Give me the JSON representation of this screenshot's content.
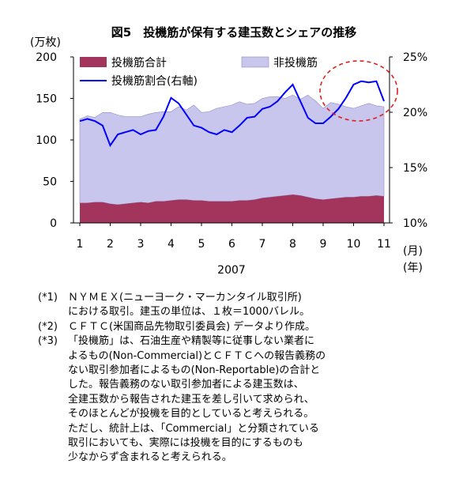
{
  "chart_data": {
    "type": "area",
    "title": "図5　投機筋が保有する建玉数とシェアの推移",
    "y_left_unit": "(万枚)",
    "y_left_ticks": [
      "0",
      "50",
      "100",
      "150",
      "200"
    ],
    "y_left_range": [
      0,
      200
    ],
    "y_right_ticks": [
      "10%",
      "15%",
      "20%",
      "25%"
    ],
    "y_right_range": [
      10,
      25
    ],
    "x_ticks": [
      "1",
      "2",
      "3",
      "4",
      "5",
      "6",
      "7",
      "8",
      "9",
      "10",
      "11"
    ],
    "x_unit_month": "(月)",
    "x_unit_year": "(年)",
    "year_label": "2007",
    "legend_placement": "top",
    "x": [
      1.0,
      1.25,
      1.5,
      1.75,
      2.0,
      2.25,
      2.5,
      2.75,
      3.0,
      3.25,
      3.5,
      3.75,
      4.0,
      4.25,
      4.5,
      4.75,
      5.0,
      5.25,
      5.5,
      5.75,
      6.0,
      6.25,
      6.5,
      6.75,
      7.0,
      7.25,
      7.5,
      7.75,
      8.0,
      8.25,
      8.5,
      8.75,
      9.0,
      9.25,
      9.5,
      9.75,
      10.0,
      10.25,
      10.5,
      10.75,
      11.0
    ],
    "series": [
      {
        "name": "投機筋合計",
        "type": "area",
        "axis": "left",
        "color": "#a3345c",
        "values": [
          24,
          24,
          25,
          25,
          23,
          22,
          23,
          24,
          25,
          24,
          26,
          26,
          27,
          28,
          28,
          27,
          27,
          26,
          26,
          26,
          26,
          27,
          27,
          28,
          30,
          31,
          32,
          33,
          34,
          33,
          31,
          29,
          28,
          29,
          30,
          31,
          31,
          32,
          32,
          33,
          32
        ]
      },
      {
        "name": "非投機筋",
        "type": "area",
        "axis": "left",
        "color": "#c9c6ee",
        "note": "upper edge = total open interest (stacked on 投機筋合計)",
        "values": [
          101,
          105,
          102,
          108,
          110,
          108,
          105,
          104,
          103,
          107,
          107,
          108,
          107,
          112,
          108,
          115,
          106,
          108,
          112,
          114,
          116,
          119,
          116,
          116,
          120,
          121,
          120,
          117,
          120,
          116,
          123,
          118,
          110,
          116,
          113,
          109,
          107,
          109,
          112,
          108,
          108
        ]
      },
      {
        "name": "投機筋割合(右軸)",
        "type": "line",
        "axis": "right",
        "color": "#0000ff",
        "values": [
          19.2,
          19.4,
          19.2,
          18.8,
          17.0,
          18.0,
          18.2,
          18.4,
          18.0,
          18.3,
          18.4,
          19.6,
          21.3,
          20.8,
          19.8,
          18.8,
          18.6,
          18.2,
          18.0,
          18.4,
          18.2,
          18.8,
          19.5,
          19.6,
          20.3,
          20.5,
          21.0,
          21.8,
          22.5,
          21.0,
          19.5,
          19.0,
          19.0,
          19.6,
          20.3,
          21.3,
          22.5,
          22.8,
          22.7,
          22.8,
          21.0
        ]
      }
    ],
    "annotation": "red dashed ellipse around Oct–Nov ratio peak"
  },
  "notes": [
    {
      "marker": "(*1)",
      "lines": [
        "ＮＹＭＥＸ(ニューヨーク・マーカンタイル取引所)",
        "における取引。建玉の単位は、１枚＝1000バレル。"
      ]
    },
    {
      "marker": "(*2)",
      "lines": [
        "ＣＦＴＣ(米国商品先物取引委員会) データより作成。"
      ]
    },
    {
      "marker": "(*3)",
      "lines": [
        "「投機筋」は、石油生産や精製等に従事しない業者に",
        "よるもの(Non-Commercial)とＣＦＴＣへの報告義務の",
        "ない取引参加者によるもの(Non-Reportable)の合計と",
        "した。報告義務のない取引参加者による建玉数は、",
        "全建玉数から報告された建玉を差し引いて求められ、",
        "そのほとんどが投機を目的としていると考えられる。",
        "ただし、統計上は、「Commercial」と分類されている",
        "取引においても、実際には投機を目的にするものも",
        "少なからず含まれると考えられる。"
      ]
    }
  ],
  "colors": {
    "speculative_area": "#a3345c",
    "non_speculative_area": "#c9c6ee",
    "ratio_line": "#0000ff",
    "highlight_ellipse": "#e02020"
  }
}
